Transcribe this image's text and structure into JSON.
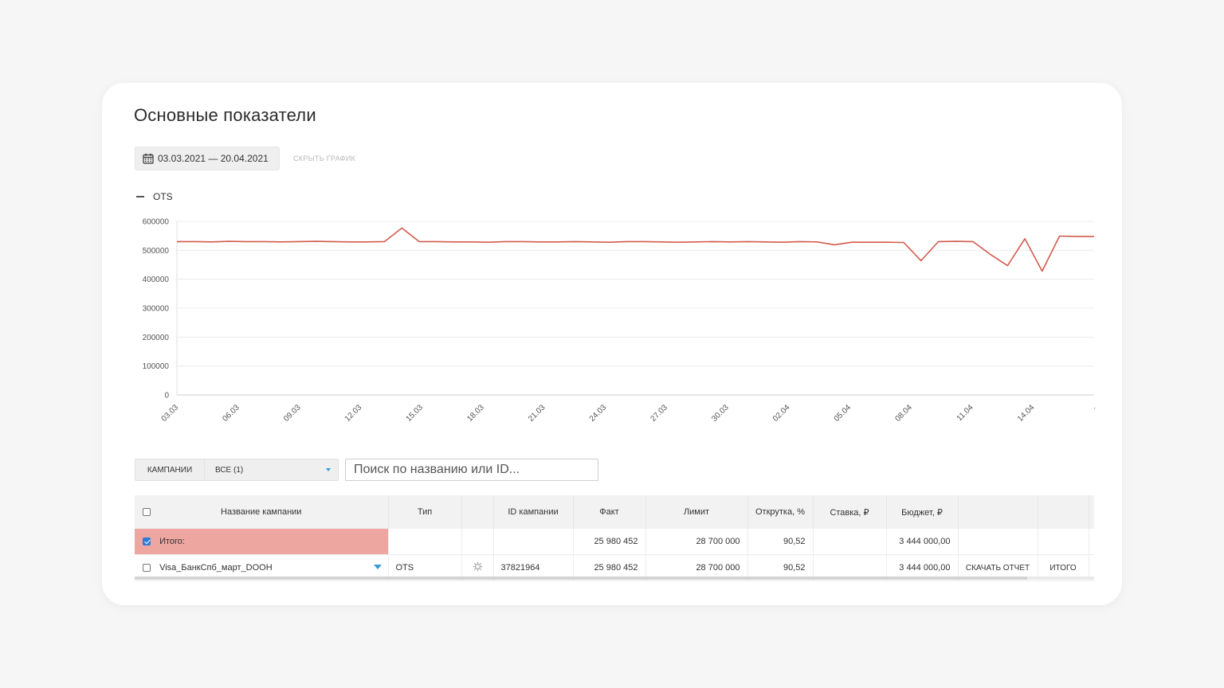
{
  "page": {
    "title": "Основные показатели"
  },
  "filters": {
    "date_range": "03.03.2021 — 20.04.2021",
    "hide_chart": "СКРЫТЬ ГРАФИК"
  },
  "legend": {
    "series_name": "OTS"
  },
  "chart_data": {
    "type": "line",
    "series": [
      {
        "name": "OTS",
        "color": "#d25b4e",
        "values": [
          530000,
          530000,
          529000,
          531000,
          530000,
          530000,
          529000,
          530000,
          531000,
          530000,
          529000,
          529000,
          530000,
          577000,
          530000,
          530000,
          529000,
          529000,
          528000,
          530000,
          530000,
          529000,
          529000,
          530000,
          529000,
          528000,
          530000,
          530000,
          529000,
          528000,
          529000,
          530000,
          529000,
          530000,
          529000,
          528000,
          530000,
          529000,
          519000,
          528000,
          528000,
          528000,
          527000,
          464000,
          530000,
          531000,
          530000,
          486000,
          447000,
          540000,
          428000,
          549000,
          548000,
          548000
        ]
      }
    ],
    "x_tick_labels": [
      "03.03",
      "06.03",
      "09.03",
      "12.03",
      "15.03",
      "18.03",
      "21.03",
      "24.03",
      "27.03",
      "30.03",
      "02.04",
      "05.04",
      "08.04",
      "11.04",
      "14.04",
      "."
    ],
    "y_tick_labels": [
      "0",
      "100000",
      "200000",
      "300000",
      "400000",
      "500000",
      "600000"
    ],
    "ylim": [
      0,
      600000
    ],
    "grid": true,
    "legend": "top-left"
  },
  "toolbar": {
    "campaigns_label": "Кампании",
    "filter_value": "Все (1)"
  },
  "search": {
    "placeholder": "Поиск по названию или ID..."
  },
  "table": {
    "headers": [
      "Название кампании",
      "Тип",
      "",
      "ID кампании",
      "Факт",
      "Лимит",
      "Открутка, %",
      "Ставка, ₽",
      "Бюджет, ₽",
      "",
      ""
    ],
    "total_row": {
      "name": "Итого:",
      "fact": "25 980 452",
      "limit": "28 700 000",
      "progress": "90,52",
      "budget": "3 444 000,00"
    },
    "rows": [
      {
        "name": "Visa_БанкСпб_март_DOOH",
        "type": "OTS",
        "id": "37821964",
        "fact": "25 980 452",
        "limit": "28 700 000",
        "progress": "90,52",
        "budget": "3 444 000,00",
        "download": "Скачать отчет",
        "total_link": "итого"
      }
    ]
  }
}
